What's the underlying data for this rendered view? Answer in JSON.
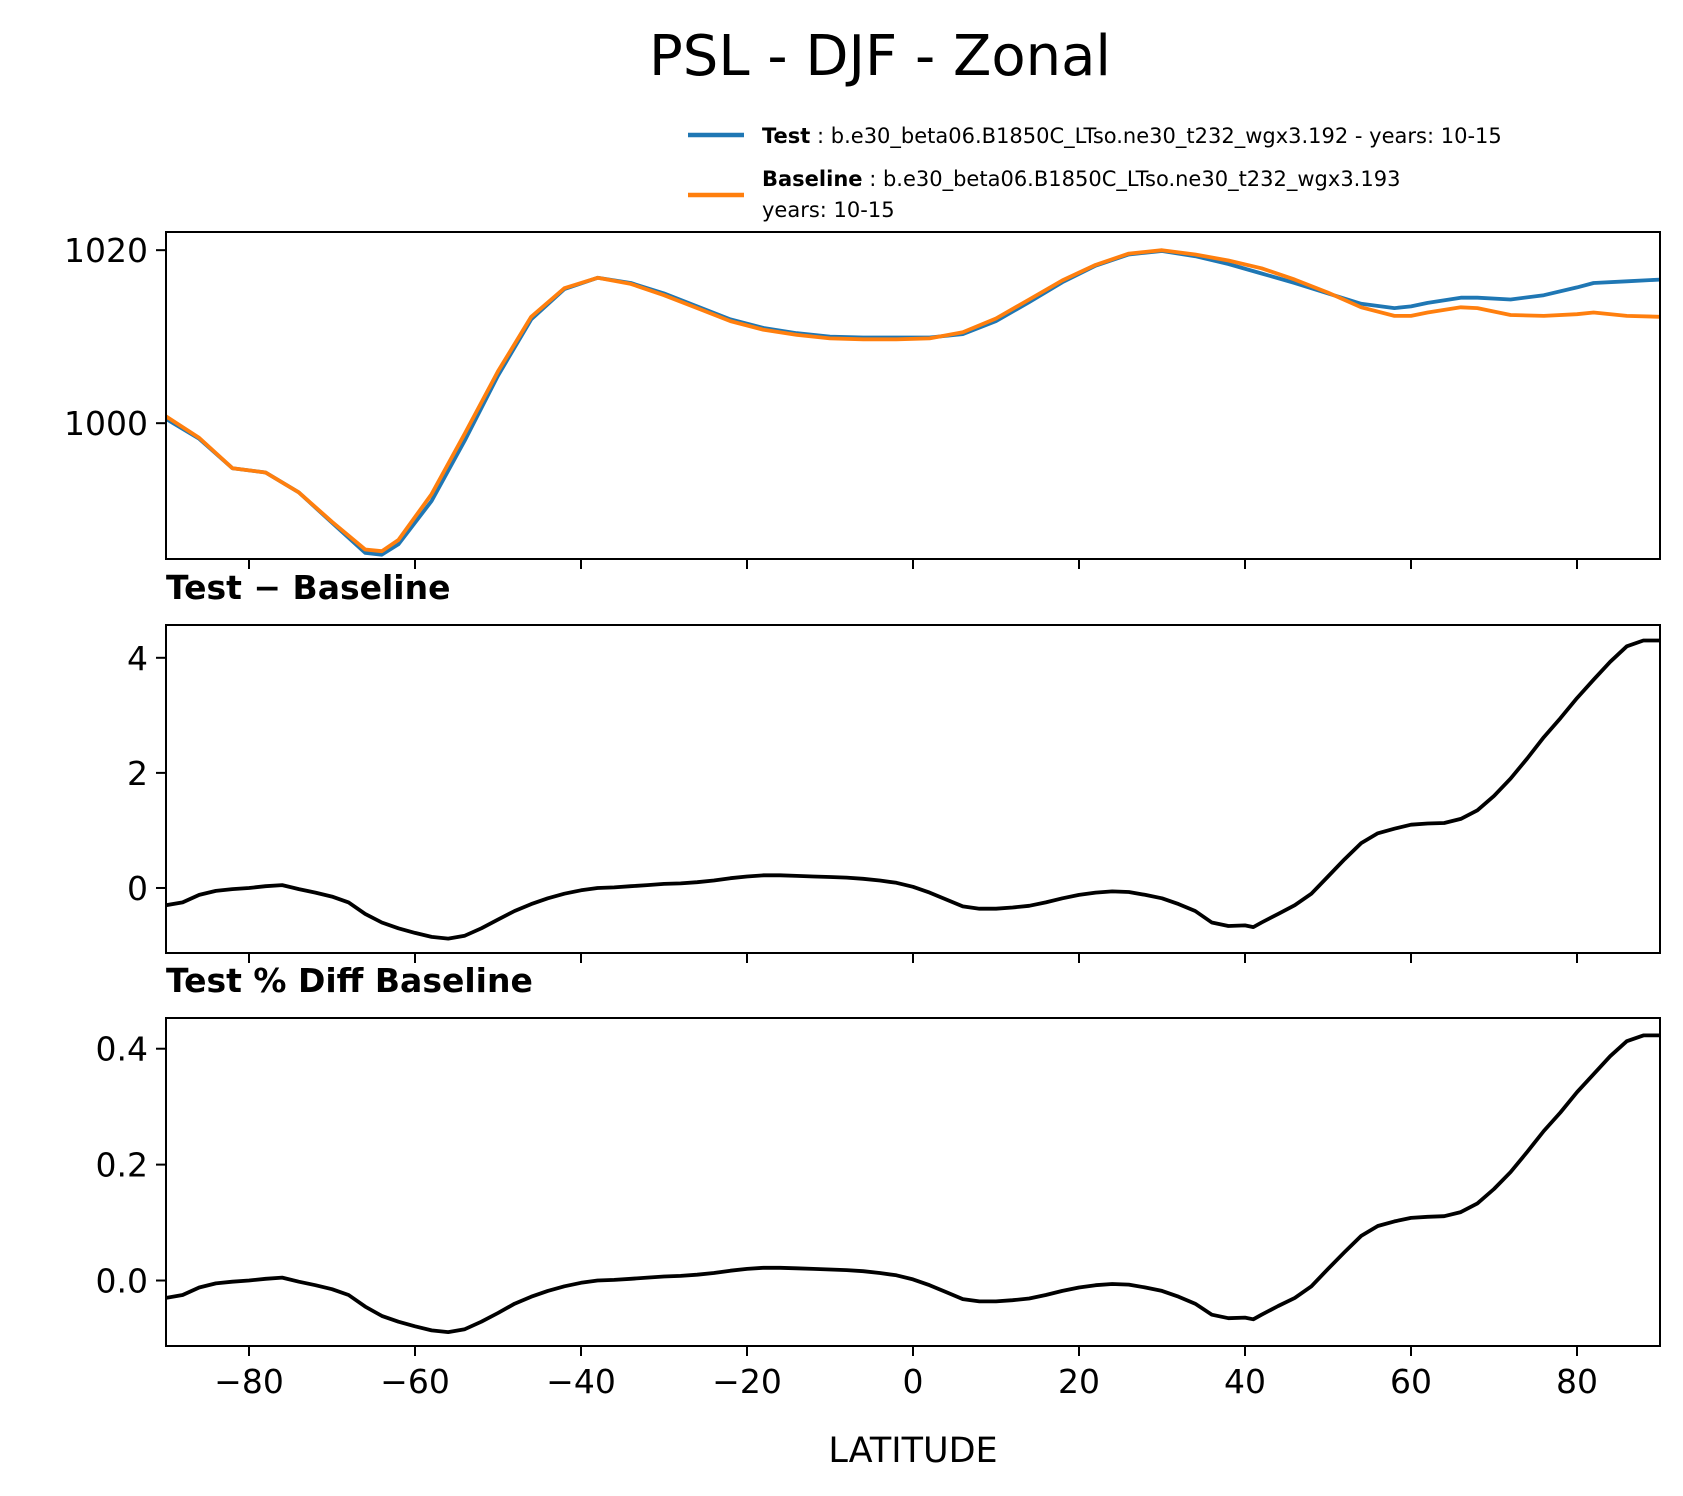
{
  "chart_data": {
    "title": "PSL - DJF - Zonal",
    "xlabel": "LATITUDE",
    "xlim": [
      -90,
      90
    ],
    "xticks": [
      -80,
      -60,
      -40,
      -20,
      0,
      20,
      40,
      60,
      80
    ],
    "xtick_labels": [
      "−80",
      "−60",
      "−40",
      "−20",
      "0",
      "20",
      "40",
      "60",
      "80"
    ],
    "panels": [
      {
        "type": "line",
        "title": "",
        "ylim": [
          984.3,
          1022.1
        ],
        "yticks": [
          1000,
          1020
        ],
        "ytick_labels": [
          "1000",
          "1020"
        ],
        "legend": {
          "position": "above-right",
          "entries": [
            {
              "name": "Test",
              "color": "#1f77b4",
              "desc": "b.e30_beta06.B1850C_LTso.ne30_t232_wgx3.192 - years: 10-15",
              "desc2": ""
            },
            {
              "name": "Baseline",
              "color": "#ff7f0e",
              "desc": "b.e30_beta06.B1850C_LTso.ne30_t232_wgx3.193",
              "desc2": "years: 10-15"
            }
          ]
        },
        "series": [
          {
            "name": "Test",
            "color": "#1f77b4",
            "x": [
              -90,
              -86,
              -82,
              -78,
              -74,
              -70,
              -66,
              -64,
              -62,
              -58,
              -54,
              -50,
              -46,
              -42,
              -38,
              -34,
              -30,
              -26,
              -22,
              -18,
              -14,
              -10,
              -6,
              -2,
              2,
              6,
              10,
              14,
              18,
              22,
              26,
              30,
              34,
              38,
              42,
              46,
              50,
              54,
              58,
              60,
              62,
              66,
              68,
              72,
              76,
              80,
              82,
              86,
              90
            ],
            "values": [
              1000.5,
              998.2,
              994.8,
              994.3,
              992.0,
              988.5,
              985.0,
              984.8,
              986.0,
              991.0,
              998.0,
              1005.5,
              1012.0,
              1015.5,
              1016.8,
              1016.2,
              1015.0,
              1013.5,
              1012.0,
              1011.0,
              1010.4,
              1010.0,
              1009.9,
              1009.9,
              1009.9,
              1010.3,
              1011.8,
              1014.0,
              1016.3,
              1018.2,
              1019.5,
              1019.9,
              1019.3,
              1018.4,
              1017.3,
              1016.2,
              1015.0,
              1013.8,
              1013.3,
              1013.5,
              1013.9,
              1014.5,
              1014.5,
              1014.3,
              1014.8,
              1015.7,
              1016.2,
              1016.4,
              1016.6
            ]
          },
          {
            "name": "Baseline",
            "color": "#ff7f0e",
            "x": [
              -90,
              -86,
              -82,
              -78,
              -74,
              -70,
              -66,
              -64,
              -62,
              -58,
              -54,
              -50,
              -46,
              -42,
              -38,
              -34,
              -30,
              -26,
              -22,
              -18,
              -14,
              -10,
              -6,
              -2,
              2,
              6,
              10,
              14,
              18,
              22,
              26,
              30,
              34,
              38,
              42,
              46,
              50,
              54,
              58,
              60,
              62,
              66,
              68,
              72,
              76,
              80,
              82,
              86,
              90
            ],
            "values": [
              1000.8,
              998.3,
              994.8,
              994.3,
              992.0,
              988.6,
              985.4,
              985.2,
              986.5,
              991.8,
              998.8,
              1006.0,
              1012.3,
              1015.6,
              1016.8,
              1016.1,
              1014.8,
              1013.3,
              1011.8,
              1010.8,
              1010.2,
              1009.8,
              1009.7,
              1009.7,
              1009.8,
              1010.5,
              1012.1,
              1014.3,
              1016.5,
              1018.3,
              1019.6,
              1020.0,
              1019.5,
              1018.8,
              1017.9,
              1016.6,
              1015.1,
              1013.4,
              1012.4,
              1012.4,
              1012.8,
              1013.4,
              1013.3,
              1012.5,
              1012.4,
              1012.6,
              1012.8,
              1012.4,
              1012.3
            ]
          }
        ]
      },
      {
        "type": "line",
        "title": "Test − Baseline",
        "ylim": [
          -1.13,
          4.57
        ],
        "yticks": [
          0,
          2,
          4
        ],
        "ytick_labels": [
          "0",
          "2",
          "4"
        ],
        "series": [
          {
            "name": "Test − Baseline",
            "color": "#000000",
            "x": [
              -90,
              -88,
              -86,
              -84,
              -82,
              -80,
              -78,
              -76,
              -74,
              -72,
              -70,
              -68,
              -66,
              -64,
              -62,
              -60,
              -58,
              -56,
              -54,
              -52,
              -50,
              -48,
              -46,
              -44,
              -42,
              -40,
              -38,
              -36,
              -34,
              -32,
              -30,
              -28,
              -26,
              -24,
              -22,
              -20,
              -18,
              -16,
              -14,
              -12,
              -10,
              -8,
              -6,
              -4,
              -2,
              0,
              2,
              4,
              6,
              8,
              10,
              12,
              14,
              16,
              18,
              20,
              22,
              24,
              26,
              28,
              30,
              32,
              34,
              36,
              38,
              40,
              41,
              42,
              44,
              46,
              48,
              50,
              52,
              54,
              56,
              58,
              60,
              62,
              64,
              66,
              68,
              70,
              72,
              74,
              76,
              78,
              80,
              82,
              84,
              86,
              88,
              90
            ],
            "values": [
              -0.3,
              -0.25,
              -0.12,
              -0.05,
              -0.02,
              0.0,
              0.03,
              0.05,
              -0.02,
              -0.08,
              -0.15,
              -0.25,
              -0.45,
              -0.6,
              -0.7,
              -0.78,
              -0.85,
              -0.88,
              -0.83,
              -0.7,
              -0.55,
              -0.4,
              -0.28,
              -0.18,
              -0.1,
              -0.04,
              0.0,
              0.01,
              0.03,
              0.05,
              0.07,
              0.08,
              0.1,
              0.13,
              0.17,
              0.2,
              0.22,
              0.22,
              0.21,
              0.2,
              0.19,
              0.18,
              0.16,
              0.13,
              0.09,
              0.02,
              -0.08,
              -0.2,
              -0.32,
              -0.36,
              -0.36,
              -0.34,
              -0.31,
              -0.25,
              -0.18,
              -0.12,
              -0.08,
              -0.06,
              -0.07,
              -0.12,
              -0.18,
              -0.28,
              -0.4,
              -0.6,
              -0.66,
              -0.65,
              -0.68,
              -0.6,
              -0.45,
              -0.3,
              -0.1,
              0.2,
              0.5,
              0.78,
              0.95,
              1.03,
              1.1,
              1.12,
              1.13,
              1.2,
              1.35,
              1.6,
              1.9,
              2.25,
              2.62,
              2.95,
              3.3,
              3.62,
              3.93,
              4.2,
              4.3,
              4.3
            ]
          }
        ]
      },
      {
        "type": "line",
        "title": "Test % Diff Baseline",
        "ylim": [
          -0.113,
          0.453
        ],
        "yticks": [
          0.0,
          0.2,
          0.4
        ],
        "ytick_labels": [
          "0.0",
          "0.2",
          "0.4"
        ],
        "series": [
          {
            "name": "Test % Diff Baseline",
            "color": "#000000",
            "x": [
              -90,
              -88,
              -86,
              -84,
              -82,
              -80,
              -78,
              -76,
              -74,
              -72,
              -70,
              -68,
              -66,
              -64,
              -62,
              -60,
              -58,
              -56,
              -54,
              -52,
              -50,
              -48,
              -46,
              -44,
              -42,
              -40,
              -38,
              -36,
              -34,
              -32,
              -30,
              -28,
              -26,
              -24,
              -22,
              -20,
              -18,
              -16,
              -14,
              -12,
              -10,
              -8,
              -6,
              -4,
              -2,
              0,
              2,
              4,
              6,
              8,
              10,
              12,
              14,
              16,
              18,
              20,
              22,
              24,
              26,
              28,
              30,
              32,
              34,
              36,
              38,
              40,
              41,
              42,
              44,
              46,
              48,
              50,
              52,
              54,
              56,
              58,
              60,
              62,
              64,
              66,
              68,
              70,
              72,
              74,
              76,
              78,
              80,
              82,
              84,
              86,
              88,
              90
            ],
            "values": [
              -0.03,
              -0.025,
              -0.012,
              -0.005,
              -0.002,
              0.0,
              0.003,
              0.005,
              -0.002,
              -0.008,
              -0.015,
              -0.025,
              -0.045,
              -0.061,
              -0.071,
              -0.079,
              -0.086,
              -0.089,
              -0.084,
              -0.071,
              -0.056,
              -0.04,
              -0.028,
              -0.018,
              -0.01,
              -0.004,
              0.0,
              0.001,
              0.003,
              0.005,
              0.007,
              0.008,
              0.01,
              0.013,
              0.017,
              0.02,
              0.022,
              0.022,
              0.021,
              0.02,
              0.019,
              0.018,
              0.016,
              0.013,
              0.009,
              0.002,
              -0.008,
              -0.02,
              -0.032,
              -0.036,
              -0.036,
              -0.034,
              -0.031,
              -0.025,
              -0.018,
              -0.012,
              -0.008,
              -0.006,
              -0.007,
              -0.012,
              -0.018,
              -0.028,
              -0.04,
              -0.059,
              -0.065,
              -0.064,
              -0.067,
              -0.059,
              -0.044,
              -0.03,
              -0.01,
              0.02,
              0.049,
              0.077,
              0.094,
              0.102,
              0.108,
              0.11,
              0.111,
              0.118,
              0.133,
              0.158,
              0.187,
              0.222,
              0.258,
              0.29,
              0.325,
              0.356,
              0.387,
              0.413,
              0.423,
              0.423
            ]
          }
        ]
      }
    ]
  }
}
